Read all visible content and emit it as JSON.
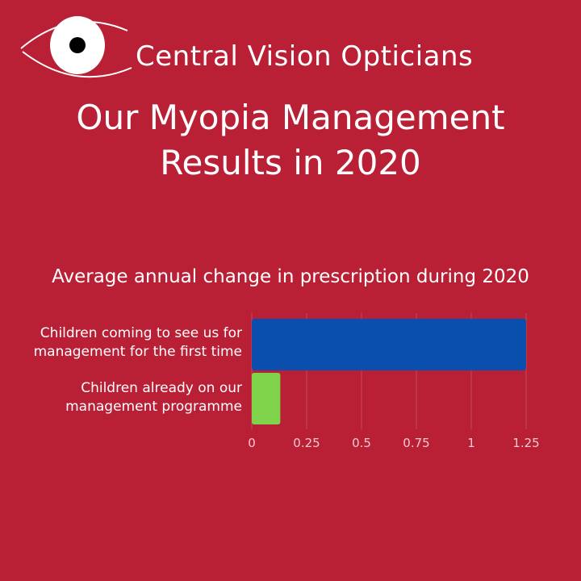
{
  "brand": {
    "name": "Central Vision Opticians",
    "logo_icon": "eye-icon"
  },
  "title": {
    "line1": "Our Myopia Management",
    "line2": "Results in 2020"
  },
  "colors": {
    "background": "#b91f35",
    "bar_first_time": "#0a4fae",
    "bar_programme": "#7fd34a",
    "grid": "#c84a5c"
  },
  "chart_data": {
    "type": "bar",
    "orientation": "horizontal",
    "title": "Average annual change in prescription during 2020",
    "categories": [
      [
        "Children coming to see us for",
        "management for the first time"
      ],
      [
        "Children already on our",
        "management programme"
      ]
    ],
    "values": [
      1.25,
      0.13
    ],
    "xlim": [
      0,
      1.25
    ],
    "xticks": [
      "0",
      "0.25",
      "0.5",
      "0.75",
      "1",
      "1.25"
    ],
    "grid": true,
    "legend": false
  }
}
